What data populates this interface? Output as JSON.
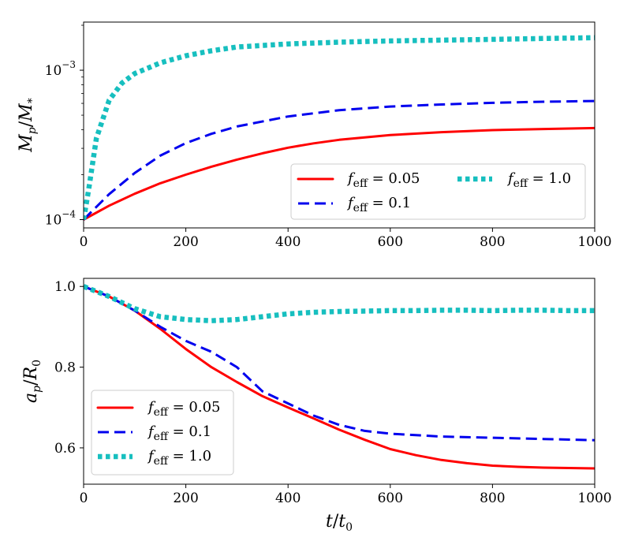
{
  "chart_data": [
    {
      "type": "line",
      "panel": "top",
      "ylabel": "M_p/M_*",
      "yscale": "log",
      "xlim": [
        0,
        1000
      ],
      "ylim": [
        8.8e-05,
        0.0021
      ],
      "xticks": [
        0,
        200,
        400,
        600,
        800,
        1000
      ],
      "xtick_labels": [
        "0",
        "200",
        "400",
        "600",
        "800",
        "1000"
      ],
      "yticks": [
        0.0001,
        0.001
      ],
      "ytick_labels": [
        {
          "base": "10",
          "exp": "−4"
        },
        {
          "base": "10",
          "exp": "−3"
        }
      ],
      "legend": {
        "placement": "lower-right",
        "columns": 2
      },
      "series": [
        {
          "name": "f_eff = 0.05",
          "legend_eq": " = 0.05",
          "color": "#ff0000",
          "style": "solid",
          "x": [
            0,
            50,
            100,
            150,
            200,
            250,
            300,
            350,
            400,
            450,
            500,
            600,
            700,
            800,
            900,
            1000
          ],
          "y": [
            0.0001,
            0.000124,
            0.000149,
            0.000175,
            0.0002,
            0.000226,
            0.000252,
            0.000278,
            0.000303,
            0.000324,
            0.000342,
            0.000368,
            0.000385,
            0.000397,
            0.000404,
            0.00041
          ]
        },
        {
          "name": "f_eff = 0.1",
          "legend_eq": " = 0.1",
          "color": "#0000ee",
          "style": "dashed",
          "x": [
            0,
            50,
            100,
            150,
            200,
            250,
            300,
            400,
            500,
            600,
            700,
            800,
            900,
            1000
          ],
          "y": [
            0.0001,
            0.000148,
            0.000205,
            0.000268,
            0.000325,
            0.000375,
            0.00042,
            0.00049,
            0.00054,
            0.000571,
            0.00059,
            0.000605,
            0.000615,
            0.000622
          ]
        },
        {
          "name": "f_eff = 1.0",
          "legend_eq": " = 1.0",
          "color": "#17bfbf",
          "style": "dotted",
          "x": [
            0,
            10,
            25,
            50,
            75,
            100,
            150,
            200,
            250,
            300,
            400,
            500,
            600,
            700,
            800,
            900,
            1000
          ],
          "y": [
            0.0001,
            0.00016,
            0.00035,
            0.00063,
            0.00082,
            0.00095,
            0.00112,
            0.00125,
            0.00135,
            0.00143,
            0.0015,
            0.00154,
            0.00157,
            0.00159,
            0.00161,
            0.00163,
            0.00165
          ]
        }
      ]
    },
    {
      "type": "line",
      "panel": "bottom",
      "xlabel": "t/t_0",
      "ylabel": "a_p/R_0",
      "xlim": [
        0,
        1000
      ],
      "ylim": [
        0.51,
        1.02
      ],
      "xticks": [
        0,
        200,
        400,
        600,
        800,
        1000
      ],
      "xtick_labels": [
        "0",
        "200",
        "400",
        "600",
        "800",
        "1000"
      ],
      "yticks": [
        0.6,
        0.8,
        1.0
      ],
      "ytick_labels": [
        "0.6",
        "0.8",
        "1.0"
      ],
      "legend": {
        "placement": "lower-left",
        "columns": 1
      },
      "series": [
        {
          "name": "f_eff = 0.05",
          "legend_eq": " = 0.05",
          "color": "#ff0000",
          "style": "solid",
          "x": [
            0,
            50,
            100,
            150,
            200,
            250,
            300,
            350,
            400,
            450,
            500,
            550,
            600,
            650,
            700,
            750,
            800,
            850,
            900,
            950,
            1000
          ],
          "y": [
            1.0,
            0.975,
            0.94,
            0.895,
            0.845,
            0.8,
            0.763,
            0.728,
            0.7,
            0.673,
            0.645,
            0.62,
            0.597,
            0.582,
            0.57,
            0.562,
            0.556,
            0.553,
            0.551,
            0.55,
            0.549
          ]
        },
        {
          "name": "f_eff = 0.1",
          "legend_eq": " = 0.1",
          "color": "#0000ee",
          "style": "dashed",
          "x": [
            0,
            50,
            100,
            150,
            200,
            250,
            300,
            350,
            400,
            450,
            500,
            550,
            600,
            700,
            800,
            900,
            1000
          ],
          "y": [
            1.0,
            0.975,
            0.94,
            0.9,
            0.865,
            0.838,
            0.8,
            0.74,
            0.71,
            0.68,
            0.657,
            0.642,
            0.635,
            0.628,
            0.625,
            0.622,
            0.619
          ]
        },
        {
          "name": "f_eff = 1.0",
          "legend_eq": " = 1.0",
          "color": "#17bfbf",
          "style": "dotted",
          "x": [
            0,
            50,
            100,
            150,
            200,
            250,
            300,
            350,
            400,
            450,
            500,
            550,
            600,
            650,
            700,
            750,
            800,
            850,
            900,
            950,
            1000
          ],
          "y": [
            1.0,
            0.975,
            0.945,
            0.925,
            0.918,
            0.915,
            0.918,
            0.925,
            0.932,
            0.936,
            0.938,
            0.939,
            0.94,
            0.94,
            0.941,
            0.941,
            0.94,
            0.941,
            0.941,
            0.94,
            0.94
          ]
        }
      ]
    }
  ]
}
